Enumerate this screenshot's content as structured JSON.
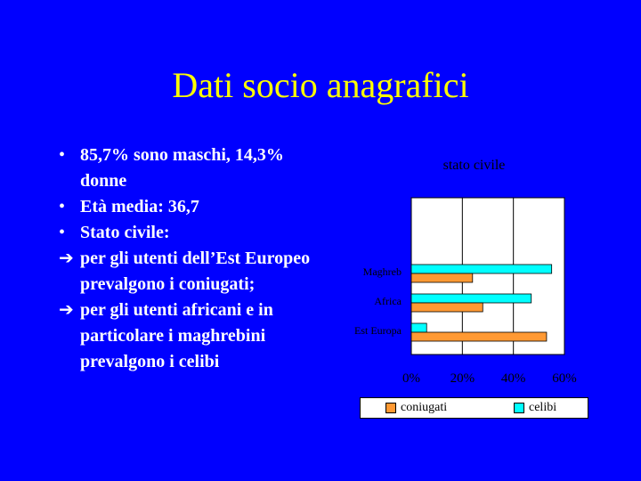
{
  "slide": {
    "title": "Dati socio anagrafici",
    "bullets": [
      {
        "marker": "•",
        "text": "85,7% sono maschi, 14,3% donne"
      },
      {
        "marker": "•",
        "text": "Età media: 36,7"
      },
      {
        "marker": "•",
        "text": "Stato civile:"
      },
      {
        "marker": "➔",
        "text": "per gli utenti dell’Est Europeo prevalgono i coniugati;"
      },
      {
        "marker": "➔",
        "text": "per gli utenti africani e in particolare i maghrebini prevalgono i celibi"
      }
    ]
  },
  "chart_data": {
    "type": "bar",
    "orientation": "horizontal",
    "title": "stato civile",
    "categories": [
      "Maghreb",
      "Africa",
      "Est Europa"
    ],
    "series": [
      {
        "name": "coniugati",
        "values": [
          24,
          28,
          53
        ],
        "color": "#ff9933"
      },
      {
        "name": "celibi",
        "values": [
          55,
          47,
          6
        ],
        "color": "#00ffff"
      }
    ],
    "xlim": [
      0,
      60
    ],
    "xticks": [
      "0%",
      "20%",
      "40%",
      "60%"
    ],
    "grid": true,
    "legend_position": "bottom",
    "plot_background": "#ffffff"
  }
}
